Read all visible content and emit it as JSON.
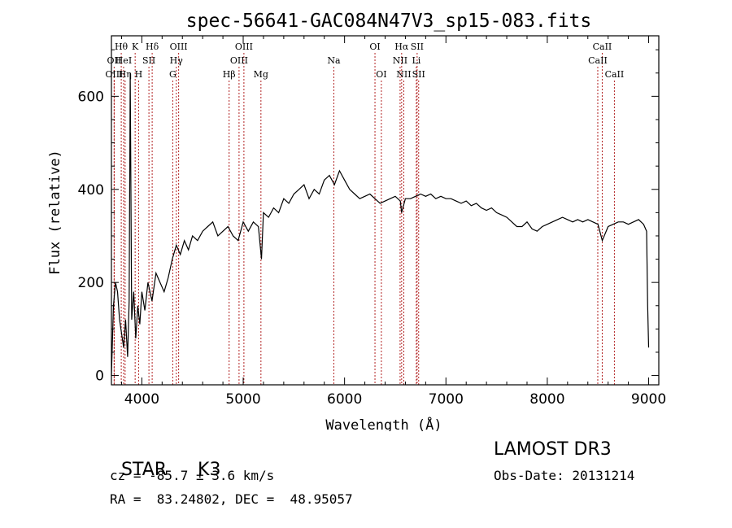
{
  "chart_data": {
    "type": "line",
    "title": "spec-56641-GAC084N47V3_sp15-083.fits",
    "xlabel": "Wavelength (Å)",
    "ylabel": "Flux (relative)",
    "xlim": [
      3700,
      9100
    ],
    "ylim": [
      -20,
      730
    ],
    "xticks": [
      4000,
      5000,
      6000,
      7000,
      8000,
      9000
    ],
    "yticks": [
      0,
      200,
      400,
      600
    ],
    "grid": false,
    "series": [
      {
        "name": "spectrum",
        "x": [
          3700,
          3720,
          3740,
          3760,
          3780,
          3800,
          3820,
          3840,
          3860,
          3875,
          3885,
          3900,
          3920,
          3940,
          3960,
          3980,
          4000,
          4030,
          4060,
          4100,
          4140,
          4180,
          4220,
          4260,
          4300,
          4340,
          4380,
          4420,
          4460,
          4500,
          4550,
          4600,
          4650,
          4700,
          4750,
          4800,
          4850,
          4900,
          4950,
          5000,
          5050,
          5100,
          5150,
          5180,
          5200,
          5250,
          5300,
          5350,
          5400,
          5450,
          5500,
          5550,
          5600,
          5650,
          5700,
          5750,
          5800,
          5850,
          5900,
          5950,
          6000,
          6050,
          6100,
          6150,
          6200,
          6250,
          6300,
          6350,
          6400,
          6450,
          6500,
          6550,
          6563,
          6600,
          6650,
          6700,
          6750,
          6800,
          6850,
          6900,
          6950,
          7000,
          7050,
          7100,
          7150,
          7200,
          7250,
          7300,
          7350,
          7400,
          7450,
          7500,
          7550,
          7600,
          7650,
          7700,
          7750,
          7800,
          7850,
          7900,
          7950,
          8000,
          8050,
          8100,
          8150,
          8200,
          8250,
          8300,
          8350,
          8400,
          8450,
          8500,
          8542,
          8600,
          8650,
          8700,
          8750,
          8800,
          8850,
          8900,
          8950,
          8980,
          8990,
          9000
        ],
        "values": [
          0,
          150,
          200,
          180,
          120,
          90,
          60,
          120,
          40,
          160,
          650,
          120,
          180,
          80,
          150,
          110,
          180,
          140,
          200,
          160,
          220,
          200,
          180,
          210,
          250,
          280,
          260,
          290,
          270,
          300,
          290,
          310,
          320,
          330,
          300,
          310,
          320,
          300,
          290,
          330,
          310,
          330,
          320,
          250,
          350,
          340,
          360,
          350,
          380,
          370,
          390,
          400,
          410,
          380,
          400,
          390,
          420,
          430,
          410,
          440,
          420,
          400,
          390,
          380,
          385,
          390,
          380,
          370,
          375,
          380,
          385,
          375,
          350,
          380,
          380,
          385,
          390,
          385,
          390,
          380,
          385,
          380,
          380,
          375,
          370,
          375,
          365,
          370,
          360,
          355,
          360,
          350,
          345,
          340,
          330,
          320,
          320,
          330,
          315,
          310,
          320,
          325,
          330,
          335,
          340,
          335,
          330,
          335,
          330,
          335,
          330,
          325,
          290,
          320,
          325,
          330,
          330,
          325,
          330,
          335,
          325,
          310,
          150,
          60
        ]
      }
    ],
    "line_markers": [
      {
        "label": "Hθ",
        "x": 3797,
        "row": 0
      },
      {
        "label": "OII",
        "x": 3727,
        "row": 1
      },
      {
        "label": "OIII",
        "x": 3727,
        "row": 2
      },
      {
        "label": "HeI",
        "x": 3820,
        "row": 1
      },
      {
        "label": "Hη",
        "x": 3835,
        "row": 2
      },
      {
        "label": "K",
        "x": 3934,
        "row": 0
      },
      {
        "label": "H",
        "x": 3968,
        "row": 2
      },
      {
        "label": "SII",
        "x": 4070,
        "row": 1
      },
      {
        "label": "Hδ",
        "x": 4102,
        "row": 0
      },
      {
        "label": "OIII",
        "x": 4363,
        "row": 0
      },
      {
        "label": "Hγ",
        "x": 4340,
        "row": 1
      },
      {
        "label": "G",
        "x": 4305,
        "row": 2
      },
      {
        "label": "Hβ",
        "x": 4861,
        "row": 2
      },
      {
        "label": "OIII",
        "x": 5007,
        "row": 0
      },
      {
        "label": "OIII",
        "x": 4959,
        "row": 1
      },
      {
        "label": "Mg",
        "x": 5175,
        "row": 2
      },
      {
        "label": "Na",
        "x": 5894,
        "row": 1
      },
      {
        "label": "OI",
        "x": 6300,
        "row": 0
      },
      {
        "label": "OI",
        "x": 6363,
        "row": 2
      },
      {
        "label": "Hα",
        "x": 6563,
        "row": 0
      },
      {
        "label": "NII",
        "x": 6548,
        "row": 1
      },
      {
        "label": "NII",
        "x": 6584,
        "row": 2
      },
      {
        "label": "SII",
        "x": 6716,
        "row": 0
      },
      {
        "label": "Li",
        "x": 6708,
        "row": 1
      },
      {
        "label": "SII",
        "x": 6731,
        "row": 2
      },
      {
        "label": "CaII",
        "x": 8542,
        "row": 0
      },
      {
        "label": "CaII",
        "x": 8498,
        "row": 1
      },
      {
        "label": "CaII",
        "x": 8662,
        "row": 2
      }
    ]
  },
  "info": {
    "class_label": "STAR",
    "subclass": "K3",
    "survey": "LAMOST DR3",
    "cz": "cz = -85.7 ± 3.6 km/s",
    "obs_date": "Obs-Date: 20131214",
    "coords": "RA =  83.24802, DEC =  48.95057"
  },
  "colors": {
    "line_marker": "#b22222",
    "spectrum": "#000000",
    "axis": "#000000"
  }
}
